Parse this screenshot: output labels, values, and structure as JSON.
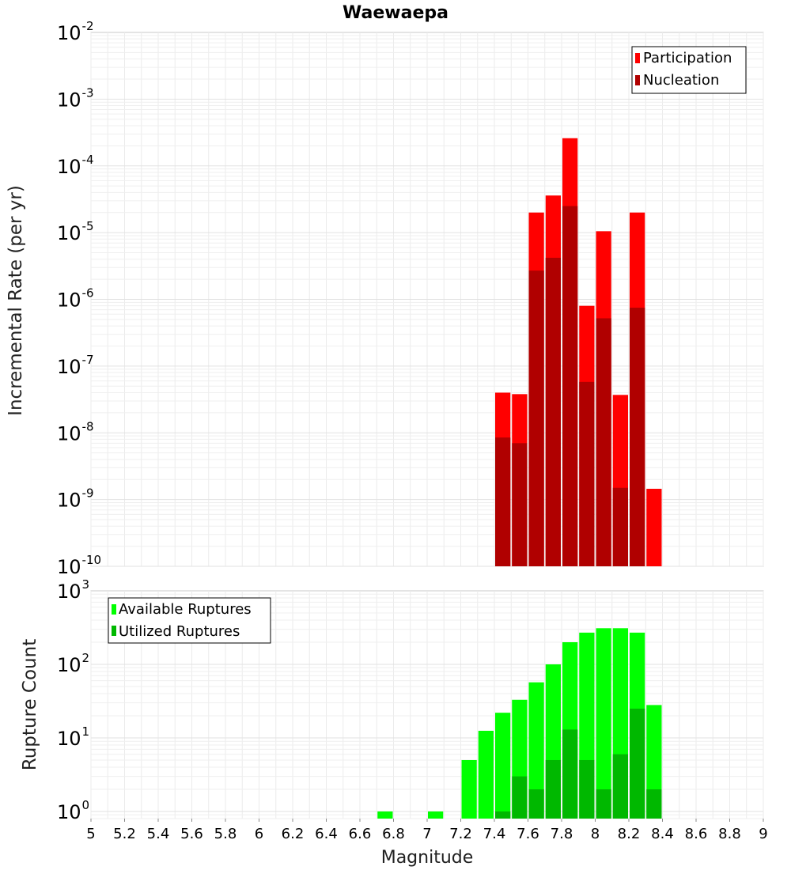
{
  "chart_data": [
    {
      "type": "bar",
      "title": "Waewaepa",
      "xlabel": "",
      "ylabel": "Incremental Rate (per yr)",
      "yscale": "log",
      "ylim": [
        1e-10,
        0.01
      ],
      "xlim": [
        5,
        9
      ],
      "ytick_labels": [
        {
          "base": "10",
          "exp": "-10"
        },
        {
          "base": "10",
          "exp": "-9"
        },
        {
          "base": "10",
          "exp": "-8"
        },
        {
          "base": "10",
          "exp": "-7"
        },
        {
          "base": "10",
          "exp": "-6"
        },
        {
          "base": "10",
          "exp": "-5"
        },
        {
          "base": "10",
          "exp": "-4"
        },
        {
          "base": "10",
          "exp": "-3"
        },
        {
          "base": "10",
          "exp": "-2"
        }
      ],
      "grid": true,
      "legend_position": "top-right",
      "series": [
        {
          "name": "Participation",
          "color": "#ff0000",
          "x": [
            7.45,
            7.55,
            7.65,
            7.75,
            7.85,
            7.95,
            8.05,
            8.15,
            8.25,
            8.35
          ],
          "values": [
            4e-08,
            3.8e-08,
            2e-05,
            3.6e-05,
            0.00026,
            8e-07,
            1.05e-05,
            3.7e-08,
            2e-05,
            1.45e-09
          ]
        },
        {
          "name": "Nucleation",
          "color": "#b00000",
          "x": [
            7.45,
            7.55,
            7.65,
            7.75,
            7.85,
            7.95,
            8.05,
            8.15,
            8.25,
            8.35
          ],
          "values": [
            8.5e-09,
            7e-09,
            2.7e-06,
            4.2e-06,
            2.5e-05,
            5.8e-08,
            5.2e-07,
            1.5e-09,
            7.5e-07,
            null
          ]
        }
      ]
    },
    {
      "type": "bar",
      "title": "",
      "xlabel": "Magnitude",
      "ylabel": "Rupture Count",
      "yscale": "log",
      "ylim": [
        0.8,
        1000
      ],
      "xlim": [
        5,
        9
      ],
      "xticks": [
        "5",
        "5.2",
        "5.4",
        "5.6",
        "5.8",
        "6",
        "6.2",
        "6.4",
        "6.6",
        "6.8",
        "7",
        "7.2",
        "7.4",
        "7.6",
        "7.8",
        "8",
        "8.2",
        "8.4",
        "8.6",
        "8.8",
        "9"
      ],
      "ytick_labels": [
        {
          "base": "10",
          "exp": "0"
        },
        {
          "base": "10",
          "exp": "1"
        },
        {
          "base": "10",
          "exp": "2"
        },
        {
          "base": "10",
          "exp": "3"
        }
      ],
      "grid": true,
      "legend_position": "top-left",
      "series": [
        {
          "name": "Available Ruptures",
          "color": "#00ff00",
          "x": [
            6.75,
            7.05,
            7.25,
            7.35,
            7.45,
            7.55,
            7.65,
            7.75,
            7.85,
            7.95,
            8.05,
            8.15,
            8.25,
            8.35
          ],
          "values": [
            1,
            1,
            5,
            12.5,
            22,
            33,
            57,
            100,
            200,
            270,
            310,
            310,
            270,
            28
          ]
        },
        {
          "name": "Utilized Ruptures",
          "color": "#00b800",
          "x": [
            7.45,
            7.55,
            7.65,
            7.75,
            7.85,
            7.95,
            8.05,
            8.15,
            8.25,
            8.35
          ],
          "values": [
            1,
            3,
            2,
            5,
            13,
            5,
            2,
            6,
            25,
            2
          ]
        }
      ]
    }
  ]
}
